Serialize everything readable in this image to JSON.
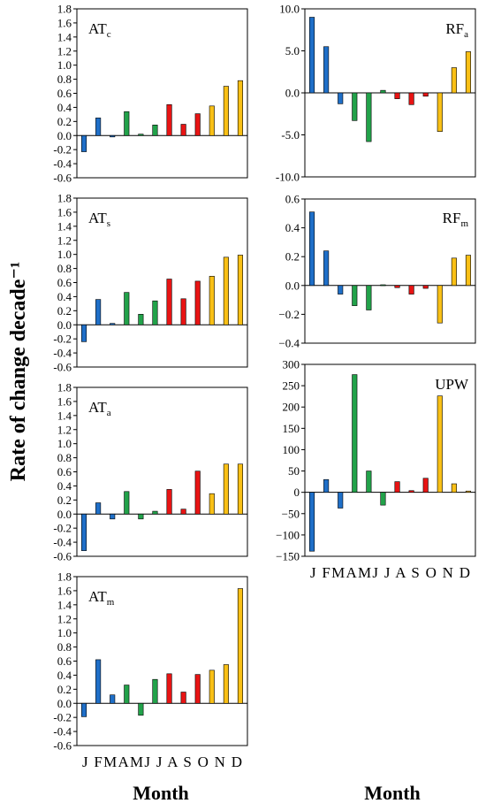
{
  "figure": {
    "ylabel": "Rate of change decade⁻¹",
    "xlabel_left": "Month",
    "xlabel_right": "Month"
  },
  "colors": {
    "winter": "#1f6fc8",
    "spring": "#22a24a",
    "summer": "#e81414",
    "autumn": "#f9c016"
  },
  "chart_data": [
    {
      "type": "bar",
      "label_main": "AT",
      "label_sub": "c",
      "categories": [
        "J",
        "F",
        "M",
        "A",
        "M",
        "J",
        "J",
        "A",
        "S",
        "O",
        "N",
        "D"
      ],
      "values": [
        -0.23,
        0.25,
        -0.02,
        0.34,
        0.02,
        0.15,
        0.44,
        0.16,
        0.31,
        0.42,
        0.7,
        0.78
      ],
      "ylim": [
        -0.6,
        1.8
      ],
      "ticks": [
        "1.8",
        "1.6",
        "1.4",
        "1.2",
        "1.0",
        "0.8",
        "0.6",
        "0.4",
        "0.2",
        "0.0",
        "-0.2",
        "-0.4",
        "-0.6"
      ]
    },
    {
      "type": "bar",
      "label_main": "AT",
      "label_sub": "s",
      "categories": [
        "J",
        "F",
        "M",
        "A",
        "M",
        "J",
        "J",
        "A",
        "S",
        "O",
        "N",
        "D"
      ],
      "values": [
        -0.24,
        0.36,
        0.02,
        0.46,
        0.15,
        0.34,
        0.65,
        0.37,
        0.62,
        0.69,
        0.96,
        0.99
      ],
      "ylim": [
        -0.6,
        1.8
      ],
      "ticks": [
        "1.8",
        "1.6",
        "1.4",
        "1.2",
        "1.0",
        "0.8",
        "0.6",
        "0.4",
        "0.2",
        "0.0",
        "-0.2",
        "-0.4",
        "-0.6"
      ]
    },
    {
      "type": "bar",
      "label_main": "AT",
      "label_sub": "a",
      "categories": [
        "J",
        "F",
        "M",
        "A",
        "M",
        "J",
        "J",
        "A",
        "S",
        "O",
        "N",
        "D"
      ],
      "values": [
        -0.52,
        0.16,
        -0.07,
        0.32,
        -0.07,
        0.04,
        0.35,
        0.07,
        0.61,
        0.29,
        0.71,
        0.71
      ],
      "ylim": [
        -0.6,
        1.8
      ],
      "ticks": [
        "1.8",
        "1.6",
        "1.4",
        "1.2",
        "1.0",
        "0.8",
        "0.6",
        "0.4",
        "0.2",
        "0.0",
        "-0.2",
        "-0.4",
        "-0.6"
      ]
    },
    {
      "type": "bar",
      "label_main": "AT",
      "label_sub": "m",
      "categories": [
        "J",
        "F",
        "M",
        "A",
        "M",
        "J",
        "J",
        "A",
        "S",
        "O",
        "N",
        "D"
      ],
      "values": [
        -0.19,
        0.62,
        0.12,
        0.26,
        -0.17,
        0.34,
        0.42,
        0.16,
        0.41,
        0.47,
        0.55,
        1.63
      ],
      "ylim": [
        -0.6,
        1.8
      ],
      "ticks": [
        "1.8",
        "1.6",
        "1.4",
        "1.2",
        "1.0",
        "0.8",
        "0.6",
        "0.4",
        "0.2",
        "0.0",
        "-0.2",
        "-0.4",
        "-0.6"
      ],
      "xticklabels": "J FMAMJ J A S O N D"
    },
    {
      "type": "bar",
      "label_main": "RF",
      "label_sub": "a",
      "categories": [
        "J",
        "F",
        "M",
        "A",
        "M",
        "J",
        "J",
        "A",
        "S",
        "O",
        "N",
        "D"
      ],
      "values": [
        9.0,
        5.5,
        -1.3,
        -3.3,
        -5.8,
        0.3,
        -0.7,
        -1.4,
        -0.4,
        -4.6,
        3.0,
        4.9
      ],
      "ylim": [
        -10.0,
        10.0
      ],
      "ticks": [
        "10.0",
        "5.0",
        "0.0",
        "-5.0",
        "-10.0"
      ]
    },
    {
      "type": "bar",
      "label_main": "RF",
      "label_sub": "m",
      "categories": [
        "J",
        "F",
        "M",
        "A",
        "M",
        "J",
        "J",
        "A",
        "S",
        "O",
        "N",
        "D"
      ],
      "values": [
        0.51,
        0.24,
        -0.06,
        -0.14,
        -0.17,
        0.005,
        -0.015,
        -0.06,
        -0.02,
        -0.26,
        0.19,
        0.21
      ],
      "ylim": [
        -0.4,
        0.6
      ],
      "ticks": [
        "0.6",
        "0.4",
        "0.2",
        "0.0",
        "−0.2",
        "−0.4"
      ]
    },
    {
      "type": "bar",
      "label_main": "UPW",
      "label_sub": "",
      "categories": [
        "J",
        "F",
        "M",
        "A",
        "M",
        "J",
        "J",
        "A",
        "S",
        "O",
        "N",
        "D"
      ],
      "values": [
        -138,
        30,
        -37,
        276,
        50,
        -30,
        25,
        4,
        33,
        226,
        20,
        3
      ],
      "ylim": [
        -150,
        300
      ],
      "ticks": [
        "300",
        "250",
        "200",
        "150",
        "100",
        "50",
        "0",
        "−50",
        "−100",
        "−150"
      ],
      "xticklabels": "J FMAMJ J A S O N D"
    }
  ]
}
